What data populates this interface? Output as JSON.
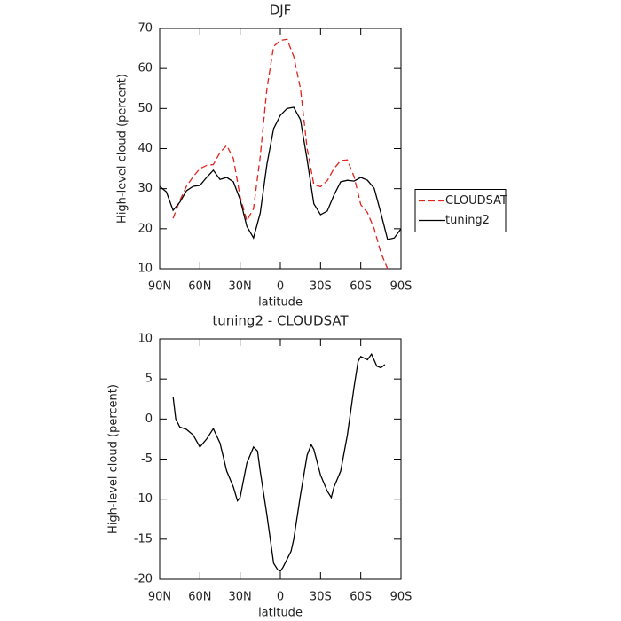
{
  "chart_data": [
    {
      "type": "line",
      "title": "DJF",
      "x_label": "latitude",
      "y_label": "High-level cloud (percent)",
      "x": [
        90,
        85,
        80,
        75,
        70,
        65,
        60,
        55,
        50,
        45,
        40,
        35,
        30,
        25,
        20,
        15,
        10,
        5,
        0,
        -5,
        -10,
        -15,
        -20,
        -25,
        -30,
        -35,
        -40,
        -45,
        -50,
        -55,
        -60,
        -65,
        -70,
        -75,
        -80,
        -85,
        -90
      ],
      "xlim": [
        90,
        -90
      ],
      "xticks": [
        {
          "value": 90,
          "label": "90N"
        },
        {
          "value": 60,
          "label": "60N"
        },
        {
          "value": 30,
          "label": "30N"
        },
        0,
        {
          "value": -30,
          "label": "30S"
        },
        {
          "value": -60,
          "label": "60S"
        },
        {
          "value": -90,
          "label": "90S"
        }
      ],
      "ylim": [
        10,
        70
      ],
      "yticks": [
        10,
        20,
        30,
        40,
        50,
        60,
        70
      ],
      "legend": "right",
      "series": [
        {
          "name": "CLOUDSAT",
          "color": "#e0231c",
          "style": "dashed",
          "values": [
            null,
            null,
            22.6,
            27,
            30.6,
            33,
            35,
            35.8,
            36,
            39,
            40.8,
            37.5,
            28,
            22,
            25,
            38,
            55,
            65.5,
            67,
            67.3,
            63,
            55,
            40,
            31,
            30.5,
            32,
            35,
            37,
            37.2,
            33,
            26,
            24,
            20,
            14,
            10,
            null,
            null
          ]
        },
        {
          "name": "tuning2",
          "color": "#000000",
          "style": "solid",
          "values": [
            30.6,
            29.2,
            24.6,
            26.6,
            29.5,
            30.6,
            30.8,
            32.8,
            34.6,
            32.3,
            32.8,
            31.7,
            27.3,
            20.6,
            17.7,
            23.9,
            36.1,
            45,
            48.3,
            50,
            50.3,
            47.2,
            37.2,
            26.2,
            23.5,
            24.4,
            28.4,
            31.7,
            32.1,
            31.9,
            32.8,
            32.1,
            30.1,
            23.9,
            17.3,
            17.7,
            20
          ]
        }
      ]
    },
    {
      "type": "line",
      "title": "tuning2 - CLOUDSAT",
      "x_label": "latitude",
      "y_label": "High-level cloud (percent)",
      "x": [
        80,
        78,
        75,
        70,
        65,
        60,
        55,
        50,
        45,
        40,
        35,
        32,
        30,
        25,
        20,
        17,
        15,
        10,
        5,
        2,
        0,
        -2,
        -5,
        -8,
        -10,
        -15,
        -20,
        -23,
        -25,
        -30,
        -35,
        -38,
        -40,
        -45,
        -50,
        -55,
        -58,
        -60,
        -65,
        -68,
        -72,
        -75,
        -78
      ],
      "xlim": [
        90,
        -90
      ],
      "xticks": [
        {
          "value": 90,
          "label": "90N"
        },
        {
          "value": 60,
          "label": "60N"
        },
        {
          "value": 30,
          "label": "30N"
        },
        0,
        {
          "value": -30,
          "label": "30S"
        },
        {
          "value": -60,
          "label": "60S"
        },
        {
          "value": -90,
          "label": "90S"
        }
      ],
      "ylim": [
        -20,
        10
      ],
      "yticks": [
        -20,
        -15,
        -10,
        -5,
        0,
        5,
        10
      ],
      "color": "#000000",
      "values": [
        2.8,
        0,
        -1,
        -1.3,
        -2,
        -3.5,
        -2.5,
        -1.2,
        -3,
        -6.5,
        -8.5,
        -10.2,
        -9.8,
        -5.5,
        -3.5,
        -4,
        -6.5,
        -12,
        -18,
        -18.8,
        -19,
        -18.5,
        -17.5,
        -16.5,
        -15,
        -9.5,
        -4.5,
        -3.2,
        -3.8,
        -7,
        -9,
        -9.8,
        -8.5,
        -6.5,
        -2,
        4,
        7.2,
        7.8,
        7.4,
        8.1,
        6.6,
        6.4,
        6.8
      ]
    }
  ]
}
